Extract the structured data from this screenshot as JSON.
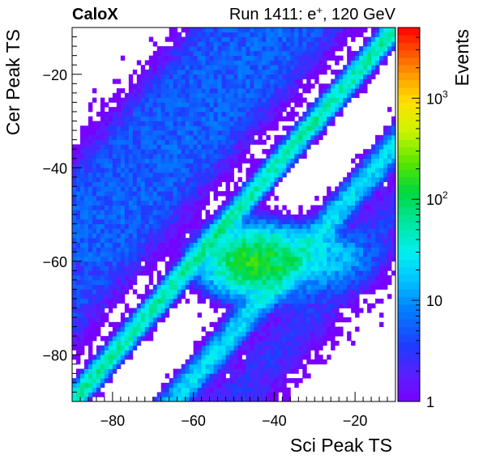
{
  "header": {
    "experiment": "CaloX",
    "run_prefix": "Run 1411: e",
    "run_particle_sup": "+",
    "run_suffix": ", 120 GeV"
  },
  "chart_data": {
    "type": "heatmap",
    "title": "",
    "xlabel": "Sci Peak TS",
    "ylabel": "Cer Peak TS",
    "zlabel": "Events",
    "xlim": [
      -90,
      -10
    ],
    "ylim": [
      -90,
      -10
    ],
    "z_scale": "log",
    "zlim": [
      1,
      5000
    ],
    "x_ticks": [
      -80,
      -60,
      -40,
      -20
    ],
    "x_tick_labels": [
      "−80",
      "−60",
      "−40",
      "−20"
    ],
    "y_ticks": [
      -80,
      -60,
      -40,
      -20
    ],
    "y_tick_labels": [
      "−80",
      "−60",
      "−40",
      "−20"
    ],
    "z_ticks": [
      {
        "value": 1,
        "base": "1",
        "exp": ""
      },
      {
        "value": 10,
        "base": "10",
        "exp": ""
      },
      {
        "value": 100,
        "base": "10",
        "exp": "2"
      },
      {
        "value": 1000,
        "base": "10",
        "exp": "3"
      }
    ],
    "bins": {
      "nx": 80,
      "ny": 80
    },
    "features": [
      {
        "kind": "diagonal_band",
        "offset": 0,
        "peak_events": 60
      },
      {
        "kind": "diagonal_band",
        "offset": -25,
        "peak_events": 25
      },
      {
        "kind": "diagonal_band",
        "offset": 20,
        "peak_events": 4
      },
      {
        "kind": "diagonal_band",
        "offset": 40,
        "peak_events": 3
      },
      {
        "kind": "diagonal_band",
        "offset": -40,
        "peak_events": 3
      },
      {
        "kind": "blob",
        "center": [
          -45,
          -60
        ],
        "peak_events": 150
      },
      {
        "kind": "blob",
        "center": [
          -30,
          -59
        ],
        "peak_events": 20
      }
    ],
    "grid": false,
    "colorbar": "right"
  }
}
